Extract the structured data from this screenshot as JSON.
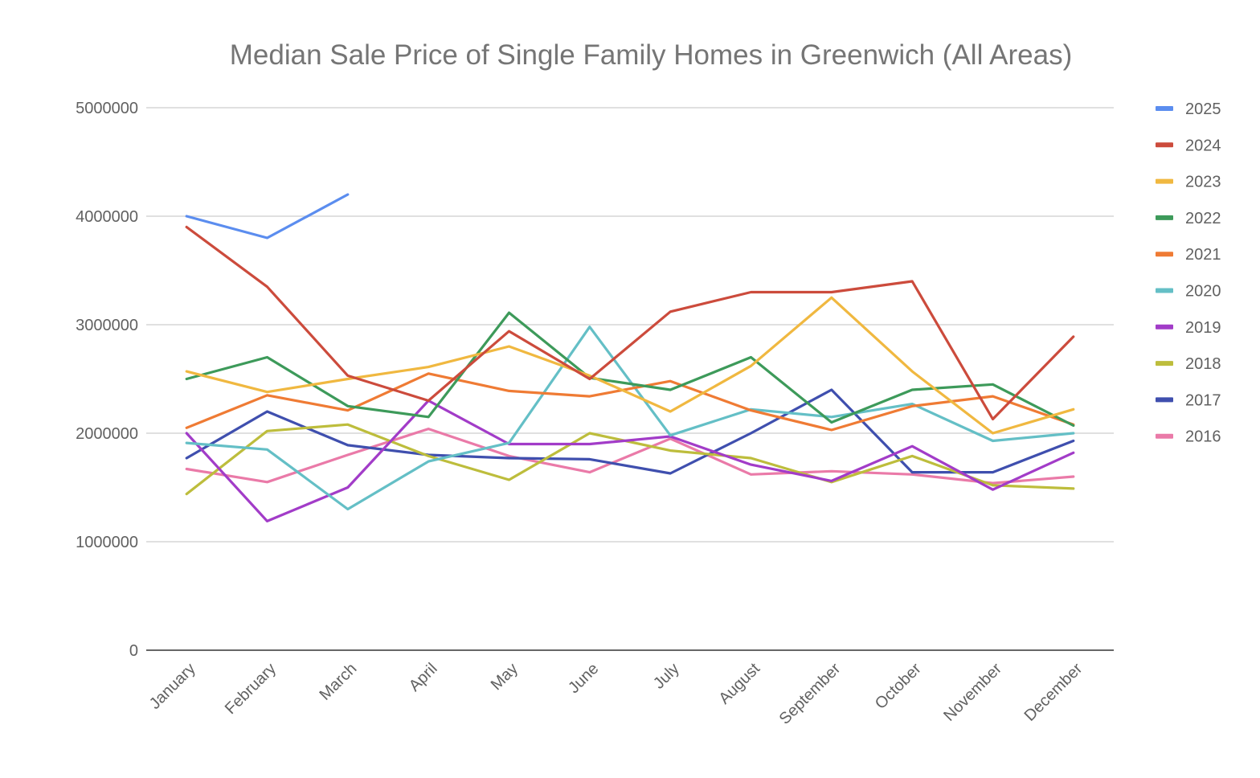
{
  "chart_data": {
    "type": "line",
    "title": "Median Sale Price of Single Family Homes in Greenwich (All Areas)",
    "xlabel": "",
    "ylabel": "",
    "ylim": [
      0,
      5000000
    ],
    "yticks": [
      "0",
      "1000000",
      "2000000",
      "3000000",
      "4000000",
      "5000000"
    ],
    "grid": true,
    "legend_position": "right",
    "categories": [
      "January",
      "February",
      "March",
      "April",
      "May",
      "June",
      "July",
      "August",
      "September",
      "October",
      "November",
      "December"
    ],
    "series": [
      {
        "name": "2025",
        "color": "#5b8def",
        "values": [
          4000000,
          3800000,
          4200000,
          null,
          null,
          null,
          null,
          null,
          null,
          null,
          null,
          null
        ]
      },
      {
        "name": "2024",
        "color": "#cc4b3c",
        "values": [
          3900000,
          3350000,
          2530000,
          2300000,
          2940000,
          2500000,
          3120000,
          3300000,
          3300000,
          3400000,
          2130000,
          2890000
        ]
      },
      {
        "name": "2023",
        "color": "#f0b840",
        "values": [
          2570000,
          2380000,
          2500000,
          2610000,
          2800000,
          2530000,
          2200000,
          2620000,
          3250000,
          2570000,
          2000000,
          2220000
        ]
      },
      {
        "name": "2022",
        "color": "#3d9a5a",
        "values": [
          2500000,
          2700000,
          2250000,
          2150000,
          3110000,
          2510000,
          2400000,
          2700000,
          2100000,
          2400000,
          2450000,
          2070000
        ]
      },
      {
        "name": "2021",
        "color": "#ef7b34",
        "values": [
          2050000,
          2350000,
          2210000,
          2550000,
          2390000,
          2340000,
          2480000,
          2210000,
          2030000,
          2250000,
          2340000,
          2080000
        ]
      },
      {
        "name": "2020",
        "color": "#64bfc6",
        "values": [
          1910000,
          1850000,
          1300000,
          1740000,
          1910000,
          2980000,
          1980000,
          2220000,
          2150000,
          2270000,
          1930000,
          2000000
        ]
      },
      {
        "name": "2019",
        "color": "#a23cc8",
        "values": [
          2000000,
          1190000,
          1500000,
          2300000,
          1900000,
          1900000,
          1970000,
          1710000,
          1560000,
          1880000,
          1480000,
          1820000
        ]
      },
      {
        "name": "2018",
        "color": "#bdbd3c",
        "values": [
          1440000,
          2020000,
          2080000,
          1790000,
          1570000,
          2000000,
          1840000,
          1770000,
          1550000,
          1790000,
          1520000,
          1490000
        ]
      },
      {
        "name": "2017",
        "color": "#3f4fae",
        "values": [
          1770000,
          2200000,
          1890000,
          1800000,
          1770000,
          1760000,
          1630000,
          2000000,
          2400000,
          1640000,
          1640000,
          1930000
        ]
      },
      {
        "name": "2016",
        "color": "#ea7aa8",
        "values": [
          1670000,
          1550000,
          1800000,
          2040000,
          1790000,
          1640000,
          1950000,
          1620000,
          1650000,
          1620000,
          1540000,
          1600000
        ]
      }
    ]
  }
}
